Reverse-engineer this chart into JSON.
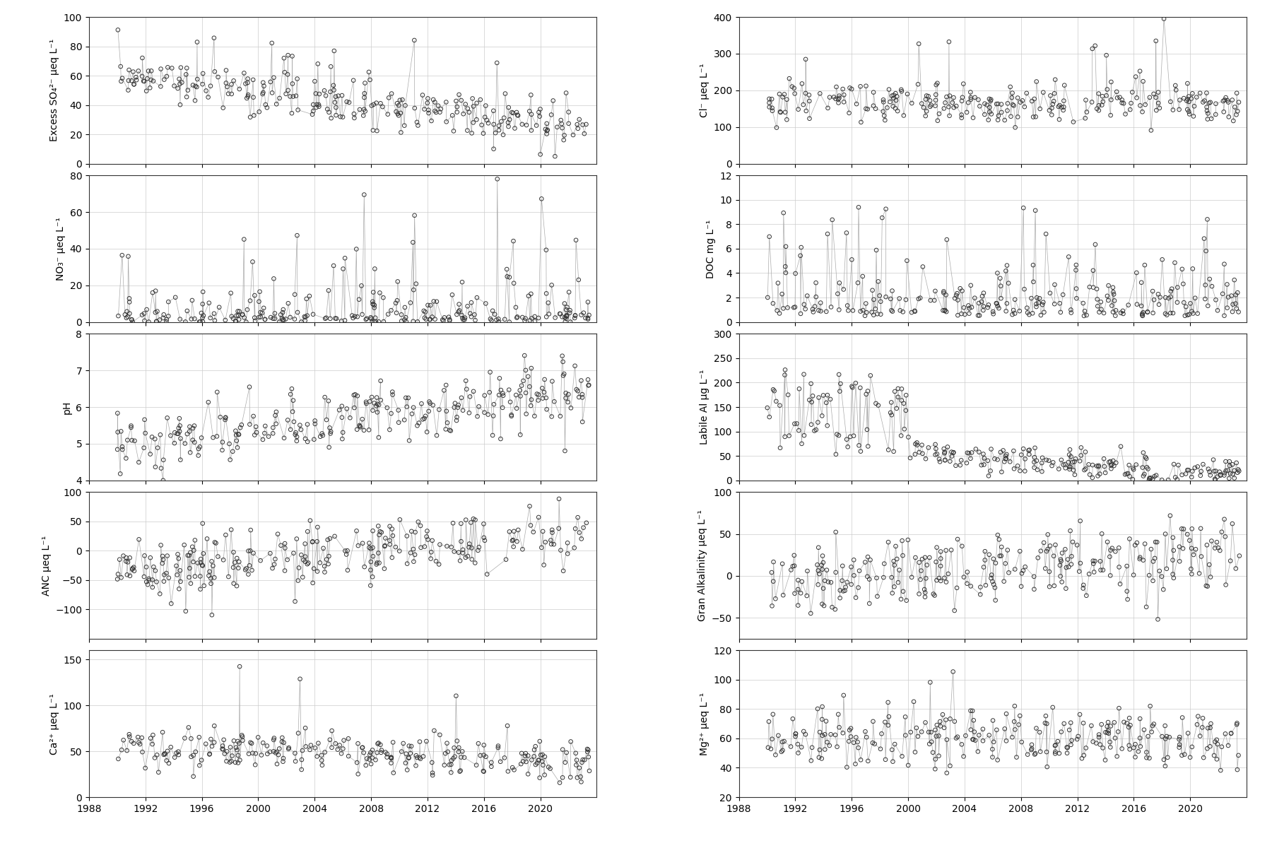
{
  "figsize": [
    18,
    12
  ],
  "dpi": 100,
  "nrows": 5,
  "ncols": 2,
  "xlim": [
    1988.5,
    2024
  ],
  "xticks": [
    1988,
    1992,
    1996,
    2000,
    2004,
    2008,
    2012,
    2016,
    2020
  ],
  "panels": [
    {
      "row": 0,
      "col": 0,
      "ylabel": "Excess SO₄²⁻ μeq L⁻¹",
      "ylim": [
        0,
        100
      ],
      "yticks": [
        0,
        20,
        40,
        60,
        80,
        100
      ]
    },
    {
      "row": 0,
      "col": 1,
      "ylabel": "Cl⁻ μeq L⁻¹",
      "ylim": [
        0,
        400
      ],
      "yticks": [
        0,
        100,
        200,
        300,
        400
      ]
    },
    {
      "row": 1,
      "col": 0,
      "ylabel": "NO₃⁻ μeq L⁻¹",
      "ylim": [
        0,
        80
      ],
      "yticks": [
        0,
        20,
        40,
        60,
        80
      ]
    },
    {
      "row": 1,
      "col": 1,
      "ylabel": "DOC mg L⁻¹",
      "ylim": [
        0,
        12
      ],
      "yticks": [
        0,
        2,
        4,
        6,
        8,
        10,
        12
      ]
    },
    {
      "row": 2,
      "col": 0,
      "ylabel": "pH",
      "ylim": [
        4,
        8
      ],
      "yticks": [
        4,
        5,
        6,
        7,
        8
      ]
    },
    {
      "row": 2,
      "col": 1,
      "ylabel": "Labile Al μg L⁻¹",
      "ylim": [
        0,
        300
      ],
      "yticks": [
        0,
        50,
        100,
        150,
        200,
        250,
        300
      ]
    },
    {
      "row": 3,
      "col": 0,
      "ylabel": "ANC μeq L⁻¹",
      "ylim": [
        -150,
        100
      ],
      "yticks": [
        -100,
        -50,
        0,
        50,
        100
      ]
    },
    {
      "row": 3,
      "col": 1,
      "ylabel": "Gran Alkalinity μeq L⁻¹",
      "ylim": [
        -75,
        100
      ],
      "yticks": [
        -50,
        0,
        50,
        100
      ]
    },
    {
      "row": 4,
      "col": 0,
      "ylabel": "Ca²⁺ μeq L⁻¹",
      "ylim": [
        0,
        160
      ],
      "yticks": [
        0,
        50,
        100,
        150
      ]
    },
    {
      "row": 4,
      "col": 1,
      "ylabel": "Mg²⁺ μeq L⁻¹",
      "ylim": [
        20,
        120
      ],
      "yticks": [
        20,
        40,
        60,
        80,
        100,
        120
      ]
    }
  ],
  "marker_style": "o",
  "marker_size": 4,
  "marker_facecolor": "none",
  "marker_edgecolor": "#333333",
  "marker_edgewidth": 0.7,
  "line_color": "#aaaaaa",
  "line_width": 0.5,
  "grid_color": "#cccccc",
  "grid_linewidth": 0.5,
  "tick_fontsize": 10,
  "ylabel_fontsize": 10,
  "hspace": 0.08,
  "wspace": 0.28
}
